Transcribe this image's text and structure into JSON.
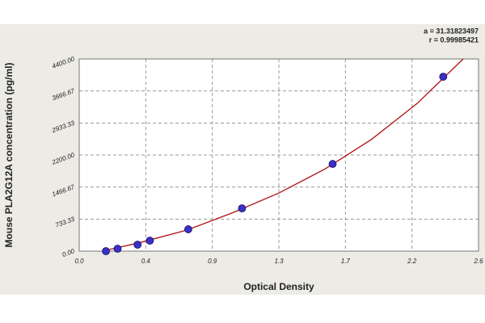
{
  "chart_data": {
    "type": "scatter",
    "x_label": "Optical Density",
    "y_label": "Mouse PLA2G12A concentration (pg/ml)",
    "annotations": [
      "a = 31.31823497",
      "r = 0.99985421"
    ],
    "x": [
      0.174,
      0.25,
      0.38,
      0.46,
      0.71,
      1.06,
      1.65,
      2.37
    ],
    "values": [
      0,
      55,
      148,
      240,
      500,
      980,
      1996,
      3993
    ],
    "color": "#3a2fc8",
    "fit": {
      "x": [
        0.15,
        0.4,
        0.7,
        1.0,
        1.3,
        1.6,
        1.9,
        2.2,
        2.5
      ],
      "y": [
        0,
        200,
        480,
        880,
        1330,
        1880,
        2550,
        3380,
        4400
      ],
      "color": "#b01010"
    },
    "xlim": [
      0,
      2.6
    ],
    "ylim": [
      0,
      4400
    ],
    "xticks": [
      {
        "value": 0,
        "label": "0.0"
      },
      {
        "value": 0.4333,
        "label": "0.4"
      },
      {
        "value": 0.8667,
        "label": "0.9"
      },
      {
        "value": 1.3,
        "label": "1.3"
      },
      {
        "value": 1.7333,
        "label": "1.7"
      },
      {
        "value": 2.1667,
        "label": "2.2"
      },
      {
        "value": 2.6,
        "label": "2.6"
      }
    ],
    "yticks": [
      {
        "value": 0,
        "label": "0.00"
      },
      {
        "value": 733.33,
        "label": "733.33"
      },
      {
        "value": 1466.67,
        "label": "1466.67"
      },
      {
        "value": 2200,
        "label": "2200.00"
      },
      {
        "value": 2933.33,
        "label": "2933.33"
      },
      {
        "value": 3666.67,
        "label": "3666.67"
      },
      {
        "value": 4400,
        "label": "4400.00"
      }
    ],
    "grid": true
  }
}
